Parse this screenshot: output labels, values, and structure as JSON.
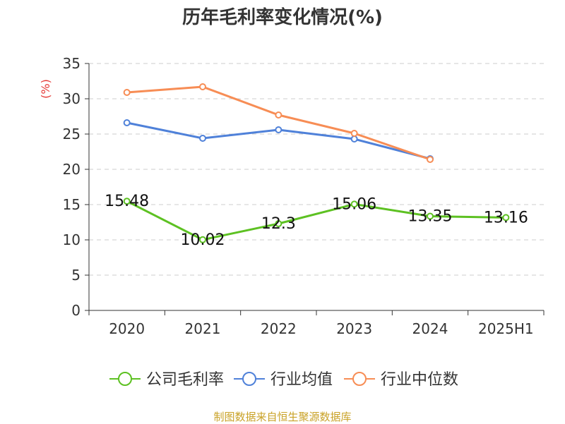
{
  "chart_data": {
    "type": "line",
    "title": "历年毛利率变化情况(%)",
    "ylabel": "(%)",
    "xlabel": "",
    "ylim": [
      0,
      35
    ],
    "yticks": [
      0,
      5,
      10,
      15,
      20,
      25,
      30,
      35
    ],
    "categories": [
      "2020",
      "2021",
      "2022",
      "2023",
      "2024",
      "2025H1"
    ],
    "grid": true,
    "legend_position": "bottom",
    "series": [
      {
        "name": "公司毛利率",
        "color": "#5dc122",
        "values": [
          15.48,
          10.02,
          12.3,
          15.06,
          13.35,
          13.16
        ],
        "labels": [
          "15.48",
          "10.02",
          "12.3",
          "15.06",
          "13.35",
          "13.16"
        ]
      },
      {
        "name": "行业均值",
        "color": "#4f81d9",
        "values": [
          26.6,
          24.4,
          25.6,
          24.3,
          21.5,
          null
        ]
      },
      {
        "name": "行业中位数",
        "color": "#f78d55",
        "values": [
          30.9,
          31.7,
          27.7,
          25.1,
          21.4,
          null
        ]
      }
    ]
  },
  "source_note": "制图数据来自恒生聚源数据库",
  "colors": {
    "axis": "#333333",
    "grid": "#cccccc",
    "ylabel": "#e53935"
  }
}
